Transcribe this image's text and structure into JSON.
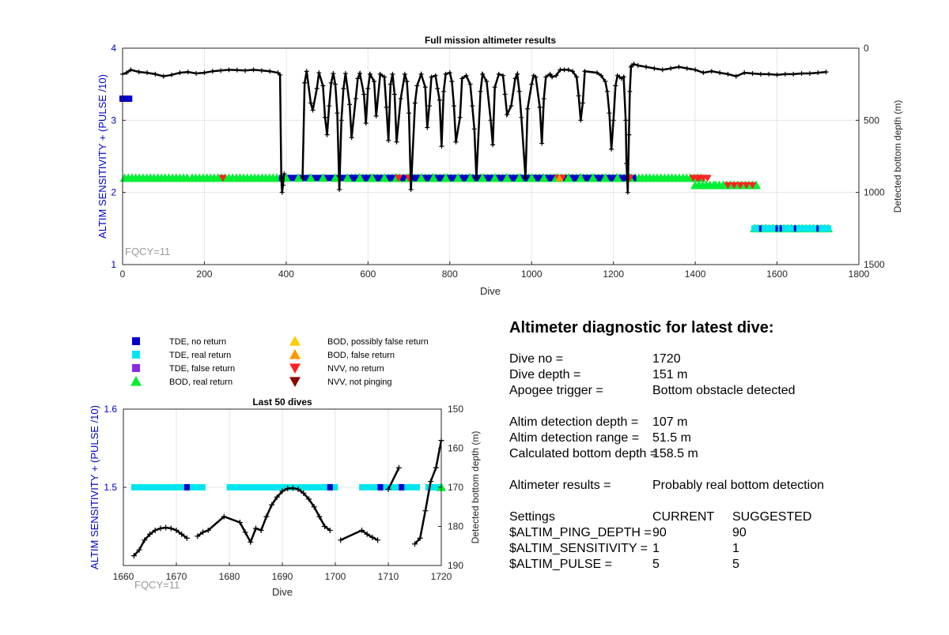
{
  "chart_data": [
    {
      "type": "scatter",
      "title": "Full mission altimeter results",
      "xlabel": "Dive",
      "ylabel": "ALTIM SENSITIVITY + (PULSE /10)",
      "y2label": "Detected bottom depth (m)",
      "xlim": [
        0,
        1800
      ],
      "ylim": [
        1,
        4
      ],
      "y2lim": [
        1500,
        0
      ],
      "xticks": [
        0,
        200,
        400,
        600,
        800,
        1000,
        1200,
        1400,
        1600,
        1800
      ],
      "yticks": [
        1,
        2,
        3,
        4
      ],
      "y2ticks": [
        0,
        500,
        1000,
        1500
      ],
      "grid": true,
      "annotation": "FQCY=11",
      "settings_series": [
        {
          "name": "TDE, no return",
          "segments": [
            [
              0,
              20,
              3.3
            ]
          ]
        },
        {
          "name": "BOD, real return",
          "segments": [
            [
              5,
              160,
              2.2
            ],
            [
              170,
              380,
              2.2
            ],
            [
              560,
              1420,
              2.2
            ],
            [
              1400,
              1450,
              2.1
            ],
            [
              1450,
              1555,
              2.1
            ],
            [
              1545,
              1725,
              1.5
            ]
          ]
        },
        {
          "name": "TDE, no return",
          "segments": [
            [
              390,
              560,
              2.2
            ],
            [
              560,
              1250,
              2.2
            ]
          ]
        },
        {
          "name": "TDE, real return",
          "segments": [
            [
              1545,
              1725,
              1.5
            ]
          ]
        }
      ],
      "nvv_no_return_x": [
        245,
        675,
        700,
        1065,
        1070,
        1075,
        1240,
        1395,
        1405,
        1410,
        1420,
        1430,
        1480,
        1495,
        1510,
        1525,
        1540
      ],
      "depth_series": {
        "name": "Detected bottom depth",
        "x": [
          0,
          10,
          20,
          40,
          60,
          80,
          100,
          120,
          140,
          160,
          180,
          200,
          220,
          240,
          260,
          280,
          300,
          320,
          340,
          360,
          380,
          385,
          388,
          390,
          392,
          395,
          440,
          445,
          450,
          460,
          465,
          475,
          480,
          490,
          495,
          500,
          505,
          510,
          515,
          520,
          525,
          530,
          535,
          540,
          545,
          555,
          560,
          570,
          575,
          580,
          590,
          595,
          600,
          605,
          615,
          620,
          630,
          640,
          645,
          650,
          655,
          660,
          665,
          670,
          680,
          690,
          695,
          700,
          705,
          715,
          720,
          730,
          740,
          745,
          750,
          755,
          765,
          770,
          775,
          780,
          785,
          790,
          800,
          805,
          810,
          815,
          825,
          830,
          840,
          850,
          855,
          860,
          865,
          875,
          880,
          890,
          900,
          905,
          910,
          920,
          930,
          935,
          940,
          950,
          960,
          965,
          970,
          975,
          985,
          990,
          1000,
          1005,
          1010,
          1020,
          1025,
          1030,
          1035,
          1045,
          1050,
          1060,
          1070,
          1080,
          1090,
          1100,
          1110,
          1115,
          1120,
          1125,
          1130,
          1160,
          1170,
          1180,
          1185,
          1190,
          1195,
          1200,
          1205,
          1210,
          1215,
          1220,
          1225,
          1230,
          1232,
          1235,
          1238,
          1240,
          1243,
          1245,
          1250,
          1260,
          1280,
          1300,
          1320,
          1340,
          1360,
          1380,
          1400,
          1420,
          1440,
          1460,
          1480,
          1500,
          1520,
          1540,
          1560,
          1580,
          1600,
          1620,
          1640,
          1660,
          1680,
          1700,
          1720
        ],
        "y": [
          180,
          170,
          150,
          165,
          170,
          180,
          195,
          185,
          170,
          165,
          175,
          170,
          160,
          155,
          150,
          152,
          155,
          150,
          155,
          160,
          170,
          185,
          900,
          1000,
          950,
          870,
          900,
          240,
          160,
          380,
          430,
          280,
          170,
          260,
          480,
          600,
          400,
          240,
          175,
          250,
          450,
          980,
          500,
          280,
          175,
          390,
          620,
          350,
          210,
          175,
          320,
          520,
          280,
          180,
          230,
          470,
          180,
          200,
          410,
          640,
          250,
          180,
          320,
          650,
          350,
          180,
          230,
          450,
          980,
          380,
          260,
          180,
          270,
          550,
          400,
          200,
          190,
          280,
          360,
          680,
          300,
          180,
          170,
          230,
          400,
          650,
          480,
          210,
          190,
          250,
          400,
          560,
          900,
          300,
          180,
          230,
          500,
          670,
          270,
          180,
          190,
          320,
          460,
          400,
          210,
          180,
          300,
          480,
          900,
          420,
          250,
          190,
          200,
          410,
          660,
          350,
          200,
          180,
          200,
          190,
          150,
          150,
          150,
          160,
          200,
          330,
          500,
          380,
          160,
          170,
          190,
          230,
          300,
          450,
          700,
          500,
          260,
          190,
          200,
          210,
          200,
          500,
          800,
          1000,
          600,
          300,
          130,
          120,
          110,
          120,
          130,
          140,
          150,
          140,
          130,
          140,
          150,
          170,
          160,
          170,
          180,
          195,
          170,
          175,
          180,
          180,
          185,
          180,
          180,
          175,
          175,
          170,
          165
        ]
      }
    },
    {
      "type": "scatter",
      "title": "Last 50 dives",
      "xlabel": "Dive",
      "ylabel": "ALTIM SENSITIVITY + (PULSE /10)",
      "y2label": "Detected bottom depth (m)",
      "xlim": [
        1660,
        1720
      ],
      "ylim": [
        1.4,
        1.6
      ],
      "y2lim": [
        190,
        150
      ],
      "xticks": [
        1660,
        1670,
        1680,
        1690,
        1700,
        1710,
        1720
      ],
      "yticks": [
        1.5,
        1.6
      ],
      "y2ticks": [
        150,
        160,
        170,
        180,
        190
      ],
      "grid": true,
      "annotation": "FQCY=11",
      "tde_real_return_segments": [
        [
          1661.5,
          1675.5
        ],
        [
          1679.5,
          1700.5
        ],
        [
          1704.5,
          1716
        ],
        [
          1717,
          1720
        ]
      ],
      "tde_no_return_x": [
        1672,
        1699,
        1708.5,
        1712.5
      ],
      "bod_real_return_x": [
        1720
      ],
      "depth_segments": [
        {
          "x": [
            1662,
            1663,
            1664,
            1665,
            1666,
            1667,
            1668,
            1669,
            1670,
            1671,
            1672
          ],
          "y": [
            187.5,
            186,
            183.5,
            182,
            181,
            180.5,
            180.3,
            180.5,
            181,
            182,
            183
          ]
        },
        {
          "x": [
            1674,
            1675,
            1676,
            1679,
            1682,
            1683,
            1684,
            1685,
            1686,
            1687,
            1688,
            1689,
            1690,
            1691,
            1692,
            1693,
            1694,
            1695,
            1696,
            1697,
            1698,
            1699
          ],
          "y": [
            182.5,
            181.5,
            181,
            177.5,
            179,
            181.5,
            184,
            180.5,
            181,
            177.5,
            174.5,
            172.5,
            171,
            170.3,
            170.2,
            170.5,
            171.5,
            173,
            175,
            177.5,
            180,
            181
          ]
        },
        {
          "x": [
            1701,
            1705,
            1706,
            1707,
            1708
          ],
          "y": [
            183.5,
            181,
            182,
            182.8,
            183.5
          ]
        },
        {
          "x": [
            1710,
            1712
          ],
          "y": [
            170.5,
            165
          ]
        },
        {
          "x": [
            1715,
            1716,
            1717,
            1718,
            1719,
            1720
          ],
          "y": [
            184.5,
            183,
            176,
            168.5,
            165,
            158
          ]
        }
      ]
    }
  ],
  "legend": {
    "items": [
      {
        "label": "TDE, no return",
        "color": "#0000cc",
        "shape": "square"
      },
      {
        "label": "TDE, real return",
        "color": "#00e5ee",
        "shape": "square"
      },
      {
        "label": "TDE, false return",
        "color": "#8a2be2",
        "shape": "square"
      },
      {
        "label": "BOD, real return",
        "color": "#00ee33",
        "shape": "triangle-up"
      },
      {
        "label": "BOD, possibly false return",
        "color": "#ffcc00",
        "shape": "triangle-up"
      },
      {
        "label": "BOD, false return",
        "color": "#ff9900",
        "shape": "triangle-up"
      },
      {
        "label": "NVV, no return",
        "color": "#ff2222",
        "shape": "triangle-down"
      },
      {
        "label": "NVV, not pinging",
        "color": "#8b0000",
        "shape": "triangle-down"
      }
    ]
  },
  "diagnostic": {
    "title": "Altimeter diagnostic for latest dive:",
    "rows": [
      {
        "label": "Dive no =",
        "value": "1720"
      },
      {
        "label": "Dive depth =",
        "value": "151 m"
      },
      {
        "label": "Apogee trigger =",
        "value": "Bottom obstacle detected"
      },
      {
        "label": "Altim detection depth =",
        "value": "107 m"
      },
      {
        "label": "Altim detection range =",
        "value": "51.5 m"
      },
      {
        "label": "Calculated bottom depth =",
        "value": "158.5 m"
      },
      {
        "label": "Altimeter results =",
        "value": "Probably real bottom detection"
      }
    ],
    "settings": {
      "header": {
        "label": "Settings",
        "current": "CURRENT",
        "suggested": "SUGGESTED"
      },
      "rows": [
        {
          "label": "$ALTIM_PING_DEPTH =",
          "current": "90",
          "suggested": "90"
        },
        {
          "label": "$ALTIM_SENSITIVITY =",
          "current": "1",
          "suggested": "1"
        },
        {
          "label": "$ALTIM_PULSE =",
          "current": "5",
          "suggested": "5"
        }
      ]
    }
  },
  "colors": {
    "axis_left": "#0000cc",
    "axis_text": "#262626",
    "grid": "#e6e6e6",
    "depth_line": "#000000",
    "annotation": "#999999"
  }
}
